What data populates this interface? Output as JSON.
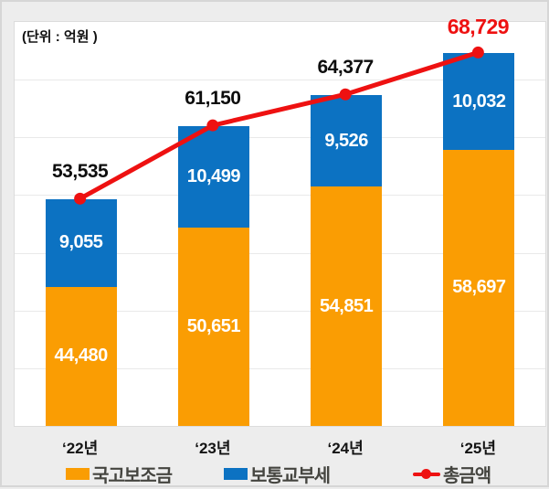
{
  "unit_label": "(단위 : 억원 )",
  "colors": {
    "orange": "#FA9D03",
    "blue": "#0C72C2",
    "red": "#EE1111",
    "grid": "#E9E9E9",
    "plot_background": "#FFFFFF",
    "canvas_background": "#EDEDED",
    "total_label": "#0D0D0D",
    "legend_text": "#454540",
    "segment_label": "#FFFFFF"
  },
  "chart_data": {
    "type": "bar",
    "subtype": "stacked-bar-with-line-overlay",
    "title": "",
    "unit_note": "(단위 : 억원 )",
    "categories": [
      "‘22년",
      "‘23년",
      "‘24년",
      "‘25년"
    ],
    "series": [
      {
        "name": "국고보조금",
        "kind": "bar",
        "color_key": "orange",
        "values": [
          44480,
          50651,
          54851,
          58697
        ],
        "labels": [
          "44,480",
          "50,651",
          "54,851",
          "58,697"
        ]
      },
      {
        "name": "보통교부세",
        "kind": "bar",
        "color_key": "blue",
        "values": [
          9055,
          10499,
          9526,
          10032
        ],
        "labels": [
          "9,055",
          "10,499",
          "9,526",
          "10,032"
        ]
      },
      {
        "name": "총금액",
        "kind": "line",
        "color_key": "red",
        "values": [
          53535,
          61150,
          64377,
          68729
        ],
        "labels": [
          "53,535",
          "61,150",
          "64,377",
          "68,729"
        ]
      }
    ],
    "ylim": [
      30000,
      72000
    ],
    "grid_step": 6000,
    "grid": true,
    "stacked": true,
    "legend_position": "bottom",
    "last_total_emphasized": true
  }
}
